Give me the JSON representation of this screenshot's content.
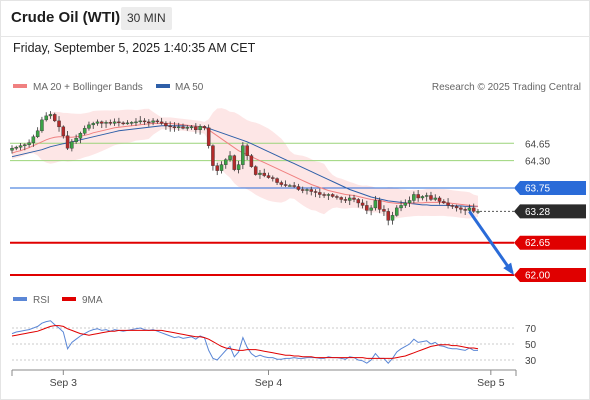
{
  "header": {
    "instrument": "Crude Oil (WTI)",
    "timeframe": "30 MIN",
    "datetime": "Friday, September 5, 2025 1:40:35 AM CET"
  },
  "legend": {
    "ma20": {
      "label": "MA 20 + Bollinger Bands",
      "color": "#f08080"
    },
    "ma50": {
      "label": "MA 50",
      "color": "#2e5fa8"
    },
    "credit": "Research © 2025 Trading Central"
  },
  "rsi_legend": {
    "rsi": {
      "label": "RSI",
      "color": "#5b87d6"
    },
    "ma9": {
      "label": "9MA",
      "color": "#e00000"
    }
  },
  "chart_data": [
    {
      "type": "candlestick",
      "title": "",
      "x_axis": {
        "labels": [
          "Sep 3",
          "Sep 4",
          "Sep 5"
        ],
        "positions": [
          12,
          60,
          112
        ]
      },
      "ylim": [
        61.8,
        65.6
      ],
      "grid": false,
      "levels": [
        {
          "value": 64.65,
          "label": "64.65",
          "kind": "resistance",
          "color": "#9bd47a"
        },
        {
          "value": 64.3,
          "label": "64.30",
          "kind": "resistance",
          "color": "#9bd47a"
        },
        {
          "value": 63.75,
          "label": "63.75",
          "kind": "pivot",
          "color": "#2a6bd8"
        },
        {
          "value": 63.28,
          "label": "63.28",
          "kind": "last-price",
          "color": "#2b2b2b"
        },
        {
          "value": 62.65,
          "label": "62.65",
          "kind": "support",
          "color": "#e00000"
        },
        {
          "value": 62.0,
          "label": "62.00",
          "kind": "support",
          "color": "#e00000"
        }
      ],
      "forecast_arrow": {
        "from": {
          "x": 150,
          "y": 63.28
        },
        "to": {
          "x": 160,
          "y": 62.05
        },
        "color": "#2a6bd8"
      },
      "close": [
        64.55,
        64.57,
        64.6,
        64.62,
        64.66,
        64.78,
        64.9,
        65.12,
        65.2,
        65.23,
        65.1,
        64.98,
        64.8,
        64.55,
        64.68,
        64.75,
        64.85,
        64.95,
        65.02,
        65.05,
        65.08,
        65.05,
        65.07,
        65.05,
        65.08,
        65.06,
        65.05,
        65.06,
        65.07,
        65.08,
        65.1,
        65.08,
        65.07,
        65.1,
        65.08,
        65.05,
        65.0,
        64.98,
        64.97,
        64.98,
        64.95,
        64.97,
        64.98,
        64.92,
        64.99,
        64.96,
        64.6,
        64.2,
        64.1,
        64.22,
        64.32,
        64.4,
        64.12,
        64.22,
        64.6,
        64.4,
        64.18,
        64.02,
        64.05,
        64.0,
        63.96,
        63.94,
        63.86,
        63.82,
        63.8,
        63.8,
        63.78,
        63.72,
        63.7,
        63.72,
        63.68,
        63.66,
        63.62,
        63.6,
        63.62,
        63.58,
        63.56,
        63.52,
        63.5,
        63.55,
        63.52,
        63.45,
        63.4,
        63.3,
        63.35,
        63.5,
        63.32,
        63.28,
        63.1,
        63.2,
        63.35,
        63.4,
        63.45,
        63.5,
        63.62,
        63.55,
        63.58,
        63.6,
        63.52,
        63.55,
        63.48,
        63.45,
        63.4,
        63.38,
        63.35,
        63.32,
        63.3,
        63.35,
        63.28,
        63.28
      ],
      "ma20": [
        64.45,
        64.48,
        64.5,
        64.53,
        64.56,
        64.6,
        64.64,
        64.68,
        64.72,
        64.75,
        64.77,
        64.78,
        64.78,
        64.77,
        64.77,
        64.78,
        64.79,
        64.81,
        64.83,
        64.86,
        64.88,
        64.9,
        64.92,
        64.94,
        64.96,
        64.97,
        64.98,
        64.99,
        65.0,
        65.01,
        65.02,
        65.03,
        65.04,
        65.05,
        65.05,
        65.05,
        65.05,
        65.05,
        65.04,
        65.03,
        65.02,
        65.01,
        65.0,
        64.99,
        64.98,
        64.96,
        64.92,
        64.86,
        64.8,
        64.74,
        64.68,
        64.62,
        64.56,
        64.5,
        64.46,
        64.42,
        64.38,
        64.34,
        64.3,
        64.26,
        64.22,
        64.18,
        64.14,
        64.1,
        64.06,
        64.02,
        63.98,
        63.94,
        63.9,
        63.86,
        63.82,
        63.79,
        63.76,
        63.73,
        63.7,
        63.68,
        63.66,
        63.64,
        63.62,
        63.61,
        63.6,
        63.58,
        63.56,
        63.54,
        63.52,
        63.51,
        63.5,
        63.48,
        63.46,
        63.45,
        63.44,
        63.44,
        63.44,
        63.44,
        63.45,
        63.45,
        63.45,
        63.46,
        63.46,
        63.46,
        63.46,
        63.46,
        63.45,
        63.44,
        63.43,
        63.42,
        63.41,
        63.4,
        63.39,
        63.38
      ],
      "ma50": [
        64.38,
        64.4,
        64.42,
        64.44,
        64.46,
        64.48,
        64.5,
        64.52,
        64.55,
        64.58,
        64.6,
        64.62,
        64.64,
        64.66,
        64.68,
        64.7,
        64.72,
        64.74,
        64.76,
        64.78,
        64.8,
        64.82,
        64.84,
        64.86,
        64.88,
        64.9,
        64.91,
        64.92,
        64.93,
        64.94,
        64.95,
        64.96,
        64.97,
        64.98,
        64.99,
        65.0,
        65.0,
        65.0,
        65.0,
        65.0,
        65.0,
        65.0,
        65.0,
        64.99,
        64.98,
        64.97,
        64.95,
        64.92,
        64.89,
        64.86,
        64.83,
        64.8,
        64.77,
        64.74,
        64.71,
        64.68,
        64.64,
        64.6,
        64.56,
        64.52,
        64.48,
        64.44,
        64.4,
        64.36,
        64.32,
        64.28,
        64.24,
        64.2,
        64.16,
        64.12,
        64.08,
        64.04,
        64.0,
        63.96,
        63.92,
        63.88,
        63.84,
        63.8,
        63.76,
        63.72,
        63.69,
        63.66,
        63.63,
        63.6,
        63.57,
        63.55,
        63.53,
        63.51,
        63.49,
        63.48,
        63.47,
        63.46,
        63.45,
        63.44,
        63.43,
        63.42,
        63.41,
        63.41,
        63.4,
        63.4,
        63.4,
        63.4,
        63.4,
        63.39,
        63.39,
        63.39,
        63.38,
        63.38,
        63.38,
        63.38
      ]
    },
    {
      "type": "line",
      "title": "RSI",
      "ylim": [
        20,
        85
      ],
      "reference_levels": [
        {
          "value": 70,
          "label": "70"
        },
        {
          "value": 50,
          "label": "50"
        },
        {
          "value": 30,
          "label": "30"
        }
      ],
      "series": [
        {
          "name": "RSI",
          "color": "#5b87d6",
          "values": [
            63,
            65,
            66,
            67,
            68,
            70,
            72,
            76,
            78,
            79,
            74,
            70,
            65,
            44,
            52,
            56,
            60,
            63,
            66,
            68,
            69,
            67,
            68,
            66,
            68,
            67,
            66,
            67,
            68,
            69,
            70,
            68,
            67,
            68,
            66,
            64,
            62,
            60,
            58,
            59,
            57,
            58,
            59,
            56,
            60,
            58,
            42,
            32,
            30,
            36,
            42,
            47,
            34,
            40,
            58,
            46,
            38,
            34,
            36,
            34,
            33,
            33,
            31,
            31,
            32,
            32,
            33,
            32,
            32,
            33,
            33,
            33,
            32,
            32,
            34,
            33,
            33,
            32,
            31,
            34,
            33,
            30,
            29,
            26,
            30,
            38,
            32,
            32,
            26,
            32,
            40,
            44,
            47,
            50,
            56,
            52,
            53,
            54,
            50,
            52,
            48,
            47,
            45,
            44,
            44,
            43,
            42,
            45,
            42,
            42
          ]
        },
        {
          "name": "9MA",
          "color": "#e00000",
          "values": [
            60,
            61,
            62,
            63,
            64,
            65,
            66,
            68,
            70,
            72,
            73,
            73,
            72,
            69,
            67,
            65,
            63,
            62,
            61,
            62,
            63,
            64,
            65,
            66,
            66,
            67,
            67,
            67,
            67,
            67,
            67,
            67,
            67,
            67,
            67,
            67,
            66,
            65,
            64,
            63,
            62,
            61,
            60,
            59,
            59,
            58,
            56,
            53,
            50,
            47,
            45,
            44,
            43,
            42,
            42,
            43,
            43,
            43,
            42,
            41,
            40,
            39,
            38,
            37,
            36,
            36,
            35,
            35,
            34,
            34,
            34,
            33,
            33,
            33,
            33,
            33,
            33,
            33,
            33,
            33,
            33,
            33,
            33,
            32,
            32,
            32,
            32,
            32,
            32,
            32,
            33,
            34,
            35,
            37,
            39,
            41,
            43,
            45,
            47,
            48,
            49,
            49,
            49,
            48,
            48,
            47,
            46,
            45,
            45,
            44
          ]
        }
      ]
    }
  ]
}
